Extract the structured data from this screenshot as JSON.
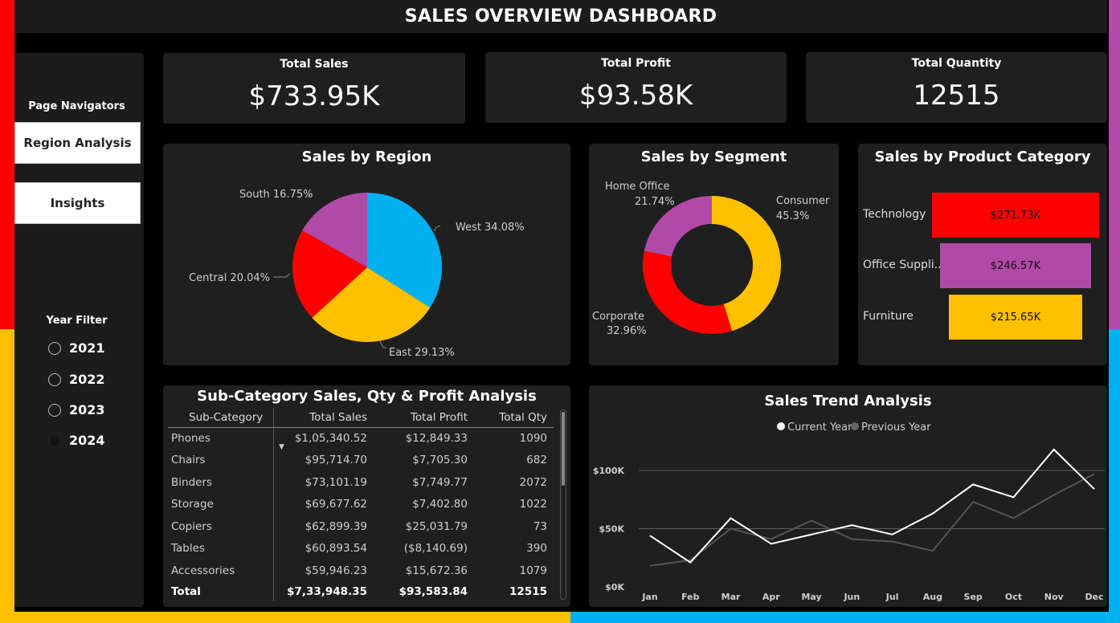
{
  "title": "SALES OVERVIEW DASHBOARD",
  "kpis": [
    {
      "label": "Total Sales",
      "value": "$733.95K"
    },
    {
      "label": "Total Profit",
      "value": "$93.58K"
    },
    {
      "label": "Total Quantity",
      "value": "12515"
    }
  ],
  "navigator": {
    "heading": "Page Navigators",
    "buttons": [
      "Region Analysis",
      "Insights"
    ]
  },
  "year_filter": {
    "heading": "Year Filter",
    "years": [
      "2021",
      "2022",
      "2023",
      "2024"
    ]
  },
  "region_chart": {
    "title": "Sales by Region",
    "labels": [
      "West 34.08%",
      "East 29.13%",
      "Central 20.04%",
      "South 16.75%"
    ],
    "colors": [
      "#00b0f0",
      "#ffc000",
      "#ff0000",
      "#b04aa6"
    ]
  },
  "segment_chart": {
    "title": "Sales by Segment",
    "consumer": [
      "Consumer",
      "45.3%"
    ],
    "corporate": [
      "Corporate",
      "32.96%"
    ],
    "home_office": [
      "Home Office",
      "21.74%"
    ],
    "colors": [
      "#ffc000",
      "#ff0000",
      "#b04aa6"
    ]
  },
  "category_chart": {
    "title": "Sales by Product Category",
    "bars": [
      {
        "label": "Technology",
        "value_label": "$271.73K",
        "color": "#ff0000"
      },
      {
        "label": "Office Suppli...",
        "value_label": "$246.57K",
        "color": "#b04aa6"
      },
      {
        "label": "Furniture",
        "value_label": "$215.65K",
        "color": "#ffc000"
      }
    ]
  },
  "table": {
    "title": "Sub-Category Sales, Qty & Profit Analysis",
    "columns": [
      "Sub-Category",
      "Total Sales",
      "Total Profit",
      "Total Qty"
    ],
    "rows": [
      [
        "Phones",
        "$1,05,340.52",
        "$12,849.33",
        "1090"
      ],
      [
        "Chairs",
        "$95,714.70",
        "$7,705.30",
        "682"
      ],
      [
        "Binders",
        "$73,101.19",
        "$7,749.77",
        "2072"
      ],
      [
        "Storage",
        "$69,677.62",
        "$7,402.80",
        "1022"
      ],
      [
        "Copiers",
        "$62,899.39",
        "$25,031.79",
        "73"
      ],
      [
        "Tables",
        "$60,893.54",
        "($8,140.69)",
        "390"
      ],
      [
        "Accessories",
        "$59,946.23",
        "$15,672.36",
        "1079"
      ]
    ],
    "total": [
      "Total",
      "$7,33,948.35",
      "$93,583.84",
      "12515"
    ]
  },
  "chart_data": [
    {
      "type": "pie",
      "title": "Sales by Region",
      "categories": [
        "West",
        "East",
        "Central",
        "South"
      ],
      "values": [
        34.08,
        29.13,
        20.04,
        16.75
      ]
    },
    {
      "type": "pie",
      "title": "Sales by Segment",
      "categories": [
        "Consumer",
        "Corporate",
        "Home Office"
      ],
      "values": [
        45.3,
        32.96,
        21.74
      ]
    },
    {
      "type": "bar",
      "title": "Sales by Product Category",
      "categories": [
        "Technology",
        "Office Suppli...",
        "Furniture"
      ],
      "values": [
        271.73,
        246.57,
        215.65
      ]
    },
    {
      "type": "line",
      "title": "Sales Trend Analysis",
      "categories": [
        "Jan",
        "Feb",
        "Mar",
        "Apr",
        "May",
        "Jun",
        "Jul",
        "Aug",
        "Sep",
        "Oct",
        "Nov",
        "Dec"
      ],
      "series": [
        {
          "name": "Current Year",
          "color": "#ffffff",
          "values": [
            44,
            21,
            59,
            37,
            45,
            53,
            45,
            63,
            88,
            77,
            118,
            84
          ]
        },
        {
          "name": "Previous Year",
          "color": "#555555",
          "values": [
            18,
            23,
            50,
            41,
            57,
            41,
            39,
            31,
            73,
            59,
            79,
            97
          ]
        }
      ],
      "y_ticks": [
        "$0K",
        "$50K",
        "$100K"
      ],
      "ylim": [
        0,
        100
      ]
    }
  ]
}
